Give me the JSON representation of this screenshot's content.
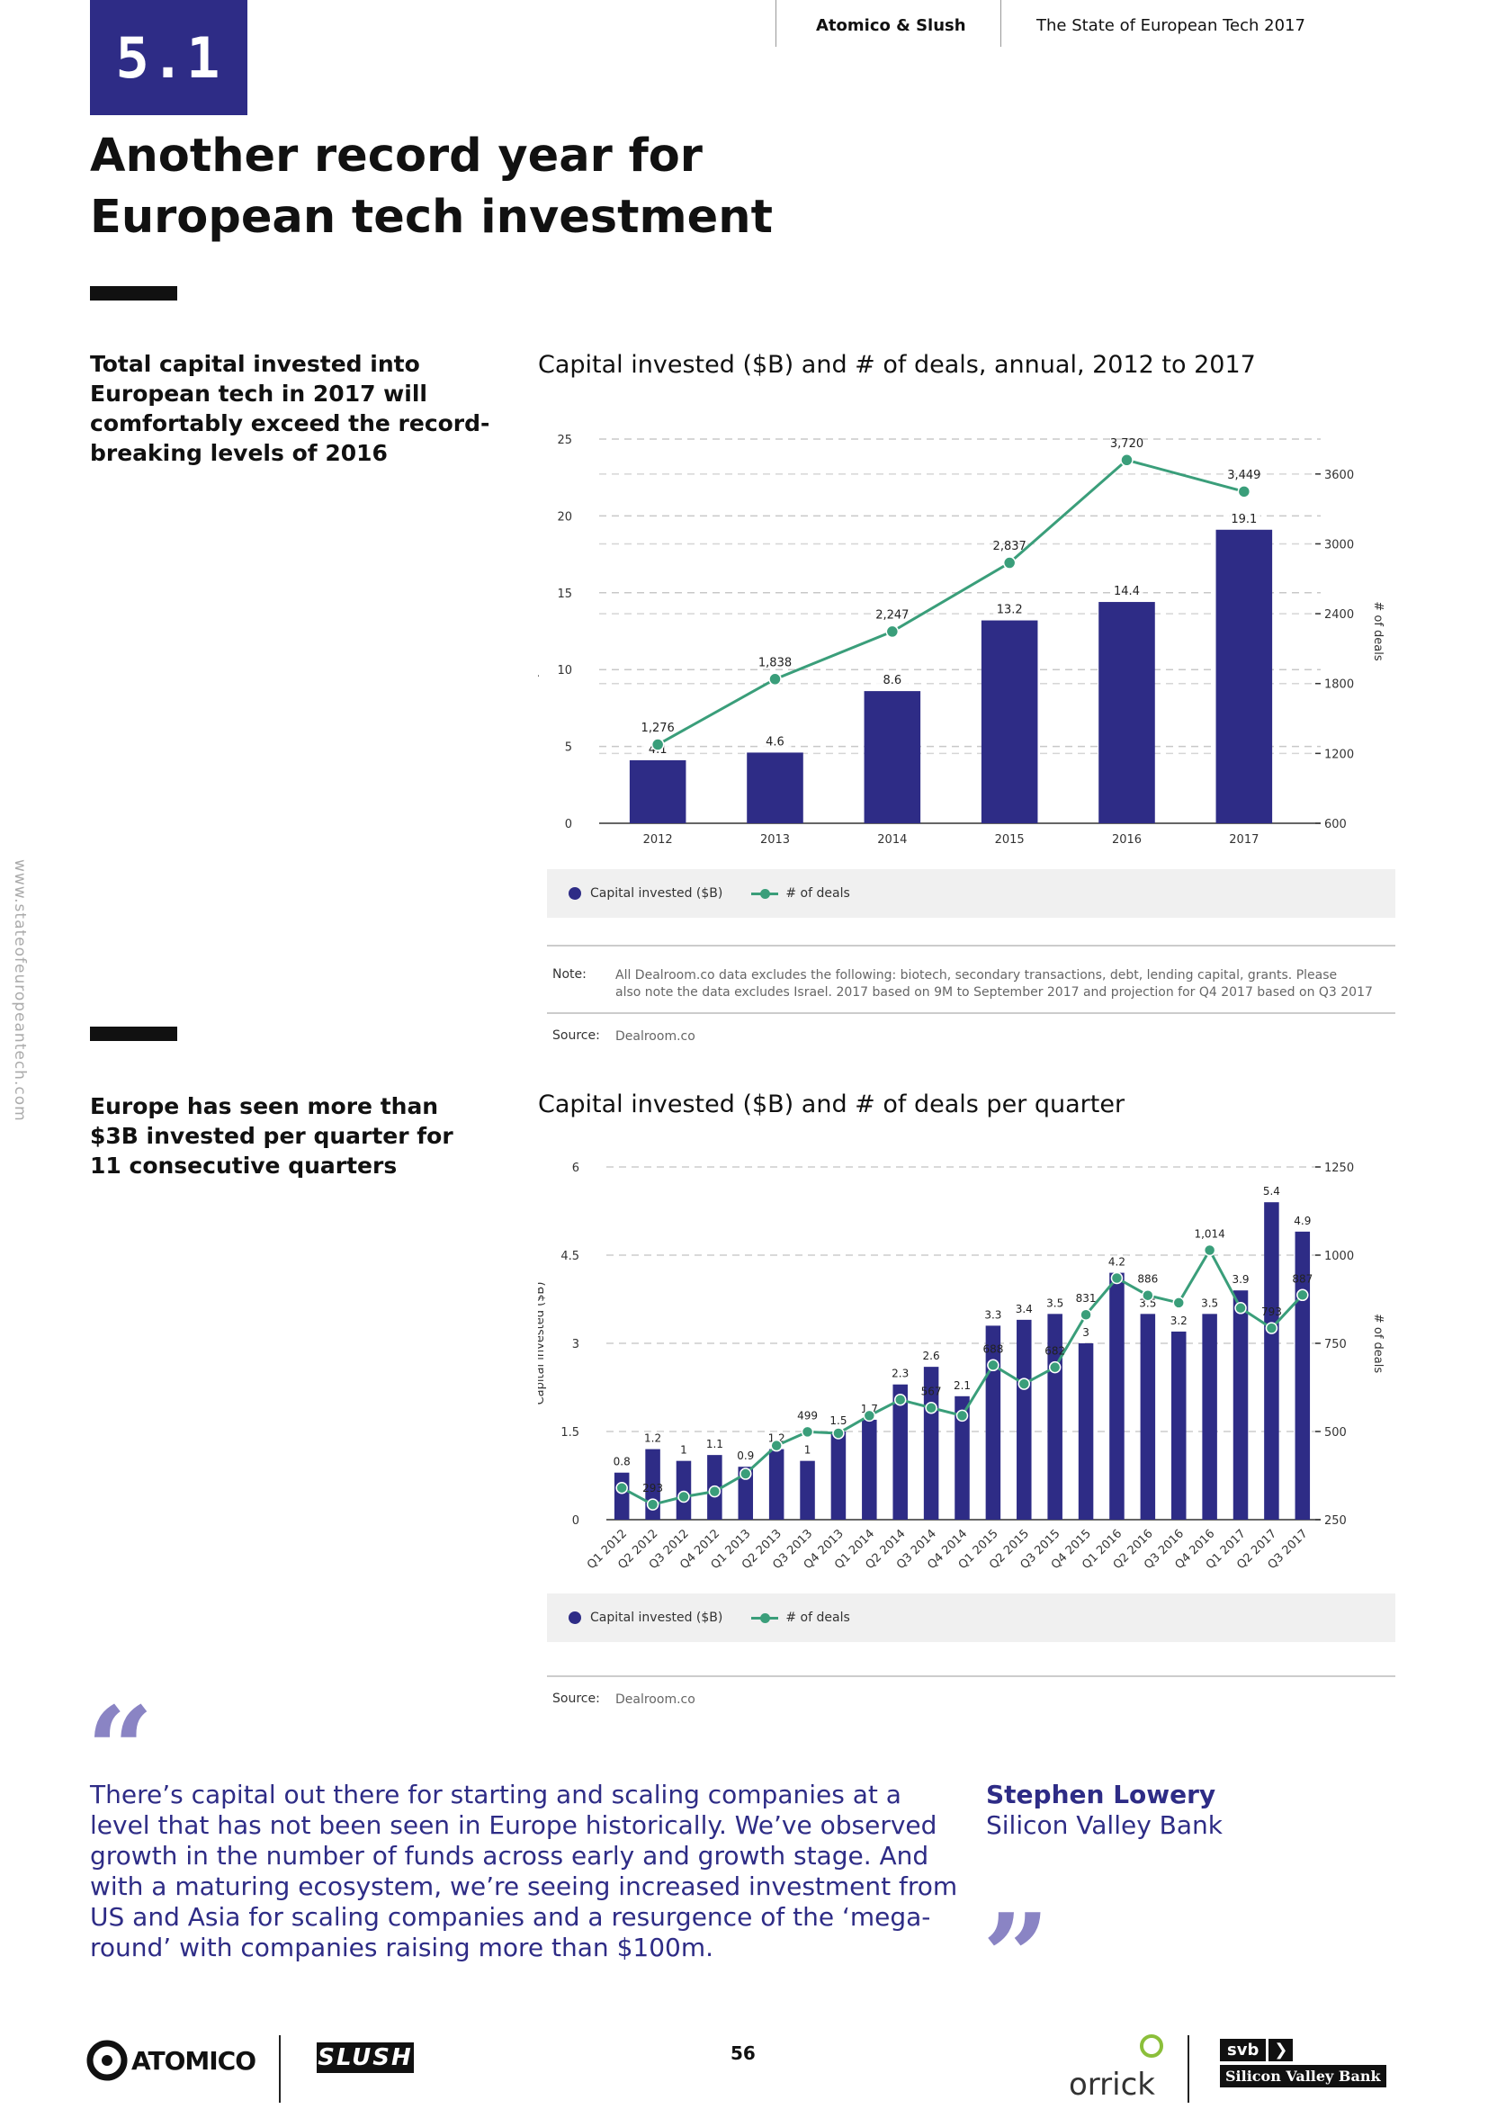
{
  "header": {
    "section_number": "5.1",
    "brand": "Atomico & Slush",
    "report": "The State of European Tech 2017"
  },
  "page_title_line1": "Another record year for",
  "page_title_line2": "European tech investment",
  "sidebar_url": "www.stateofeuropeantech.com",
  "section1": {
    "lead": "Total capital invested into European tech in 2017 will comfortably exceed the record-breaking levels of 2016",
    "chart_title": "Capital invested ($B) and # of deals, annual, 2012 to 2017",
    "legend_bar": "Capital invested ($B)",
    "legend_line": "# of deals",
    "note_label": "Note:",
    "note_line1": "All Dealroom.co data excludes the following: biotech, secondary transactions, debt, lending capital, grants. Please",
    "note_line2": "also note the data excludes Israel. 2017 based on 9M to September 2017 and projection for Q4 2017 based on Q3 2017",
    "source_label": "Source:",
    "source_text": "Dealroom.co"
  },
  "section2": {
    "lead": "Europe has seen more than $3B invested per quarter for 11 consecutive quarters",
    "chart_title": "Capital invested ($B) and # of deals per quarter",
    "legend_bar": "Capital invested ($B)",
    "legend_line": "# of deals",
    "source_label": "Source:",
    "source_text": "Dealroom.co"
  },
  "quote": {
    "open_mark": "“",
    "close_mark": "”",
    "text": "There’s capital out there for starting and scaling companies at a level that has not been seen in Europe historically. We’ve observed growth in the number of funds across early and growth stage. And with a maturing ecosystem, we’re seeing increased investment from US and Asia for scaling companies and a resurgence of the ‘mega-round’ with companies raising more than $100m.",
    "name": "Stephen Lowery",
    "org": "Silicon Valley Bank"
  },
  "footer": {
    "atomico": "ATOMICO",
    "slush": "SLUSH",
    "page_number": "56",
    "orrick": "orrick",
    "svb_short": "svb",
    "svb_full": "Silicon Valley Bank"
  },
  "colors": {
    "bar": "#2e2c86",
    "line": "#3a9e7a",
    "accent": "#2e2c86",
    "quote_mark": "#8a84c4"
  },
  "chart_data": [
    {
      "type": "bar",
      "title": "Capital invested ($B) and # of deals, annual, 2012 to 2017",
      "categories": [
        "2012",
        "2013",
        "2014",
        "2015",
        "2016",
        "2017"
      ],
      "series": [
        {
          "name": "Capital invested ($B)",
          "type": "bar",
          "axis": "left",
          "values": [
            4.1,
            4.6,
            8.6,
            13.2,
            14.4,
            19.1
          ],
          "labels": [
            "4.1",
            "4.6",
            "8.6",
            "13.2",
            "14.4",
            "19.1"
          ]
        },
        {
          "name": "# of deals",
          "type": "line",
          "axis": "right",
          "values": [
            1276,
            1838,
            2247,
            2837,
            3720,
            3449
          ],
          "labels": [
            "1,276",
            "1,838",
            "2,247",
            "2,837",
            "3,720",
            "3,449"
          ]
        }
      ],
      "ylabel": "Capital invested ($B)",
      "y2label": "# of deals",
      "ylim": [
        0,
        25
      ],
      "yticks": [
        0,
        5,
        10,
        15,
        20,
        25
      ],
      "y2lim": [
        600,
        3900
      ],
      "y2ticks": [
        600,
        1200,
        1800,
        2400,
        3000,
        3600
      ],
      "grid": true
    },
    {
      "type": "bar",
      "title": "Capital invested ($B) and # of deals per quarter",
      "categories": [
        "Q1 2012",
        "Q2 2012",
        "Q3 2012",
        "Q4 2012",
        "Q1 2013",
        "Q2 2013",
        "Q3 2013",
        "Q4 2013",
        "Q1 2014",
        "Q2 2014",
        "Q3 2014",
        "Q4 2014",
        "Q1 2015",
        "Q2 2015",
        "Q3 2015",
        "Q4 2015",
        "Q1 2016",
        "Q2 2016",
        "Q3 2016",
        "Q4 2016",
        "Q1 2017",
        "Q2 2017",
        "Q3 2017"
      ],
      "series": [
        {
          "name": "Capital invested ($B)",
          "type": "bar",
          "axis": "left",
          "values": [
            0.8,
            1.2,
            1.0,
            1.1,
            0.9,
            1.2,
            1.0,
            1.5,
            1.7,
            2.3,
            2.6,
            2.1,
            3.3,
            3.4,
            3.5,
            3.0,
            4.2,
            3.5,
            3.2,
            3.5,
            3.9,
            5.4,
            4.9
          ],
          "labels": [
            "0.8",
            "1.2",
            "1",
            "1.1",
            "0.9",
            "1.2",
            "1",
            "1.5",
            "1.7",
            "2.3",
            "2.6",
            "2.1",
            "3.3",
            "3.4",
            "3.5",
            "3",
            "4.2",
            "3.5",
            "3.2",
            "3.5",
            "3.9",
            "5.4",
            "4.9"
          ]
        },
        {
          "name": "# of deals",
          "type": "line",
          "axis": "right",
          "values": [
            340,
            293,
            315,
            330,
            380,
            460,
            499,
            495,
            545,
            590,
            567,
            545,
            688,
            635,
            682,
            831,
            935,
            886,
            865,
            1014,
            850,
            793,
            887
          ],
          "labels": [
            "",
            "293",
            "",
            "",
            "",
            "",
            "499",
            "",
            "",
            "",
            "567",
            "",
            "688",
            "",
            "682",
            "831",
            "",
            "886",
            "",
            "1,014",
            "",
            "793",
            "887"
          ]
        }
      ],
      "ylabel": "Capital invested ($B)",
      "y2label": "# of deals",
      "ylim": [
        0,
        6
      ],
      "yticks": [
        0,
        1.5,
        3,
        4.5,
        6
      ],
      "y2lim": [
        250,
        1250
      ],
      "y2ticks": [
        250,
        500,
        750,
        1000,
        1250
      ],
      "grid": true
    }
  ]
}
